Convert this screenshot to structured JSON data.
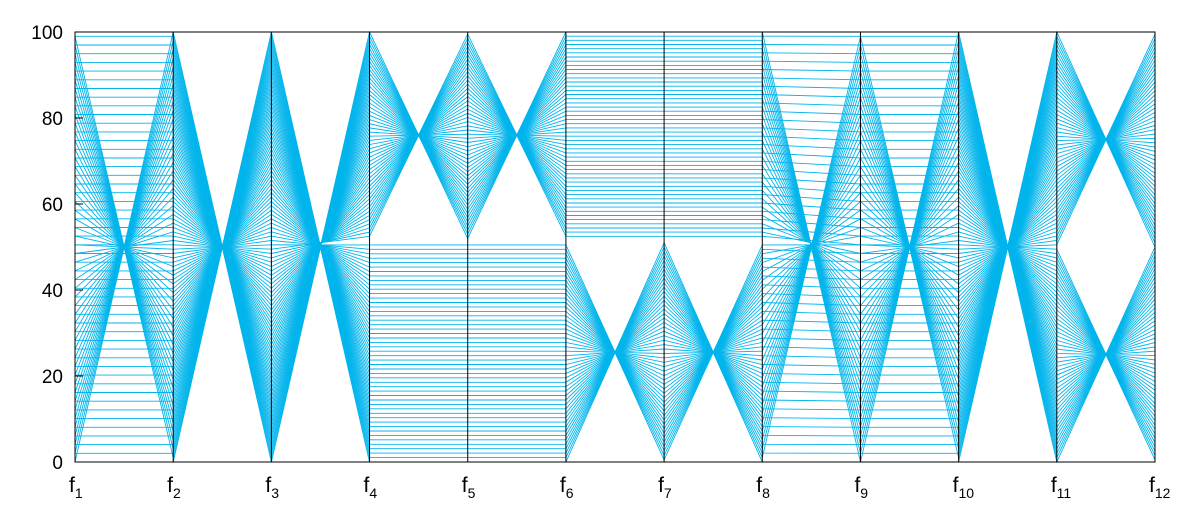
{
  "chart_data": {
    "type": "parallel-coordinates",
    "title": "",
    "axes": [
      {
        "label": "f",
        "sub": "1"
      },
      {
        "label": "f",
        "sub": "2"
      },
      {
        "label": "f",
        "sub": "3"
      },
      {
        "label": "f",
        "sub": "4"
      },
      {
        "label": "f",
        "sub": "5"
      },
      {
        "label": "f",
        "sub": "6"
      },
      {
        "label": "f",
        "sub": "7"
      },
      {
        "label": "f",
        "sub": "8"
      },
      {
        "label": "f",
        "sub": "9"
      },
      {
        "label": "f",
        "sub": "10"
      },
      {
        "label": "f",
        "sub": "11"
      },
      {
        "label": "f",
        "sub": "12"
      }
    ],
    "yticks": [
      "0",
      "20",
      "40",
      "60",
      "80",
      "100"
    ],
    "ylim": [
      0,
      100
    ],
    "grid": false,
    "line_color": "#00b4ec",
    "num_lines": 100,
    "series_description_values": {
      "f1": "ramp 0-100 over lines (uniform 0..100)",
      "f2": "value 100 - f1 mirrored within halves",
      "f3": "fold around 50",
      "f4": "unfold 0..100",
      "f12": "range 0..100"
    }
  }
}
